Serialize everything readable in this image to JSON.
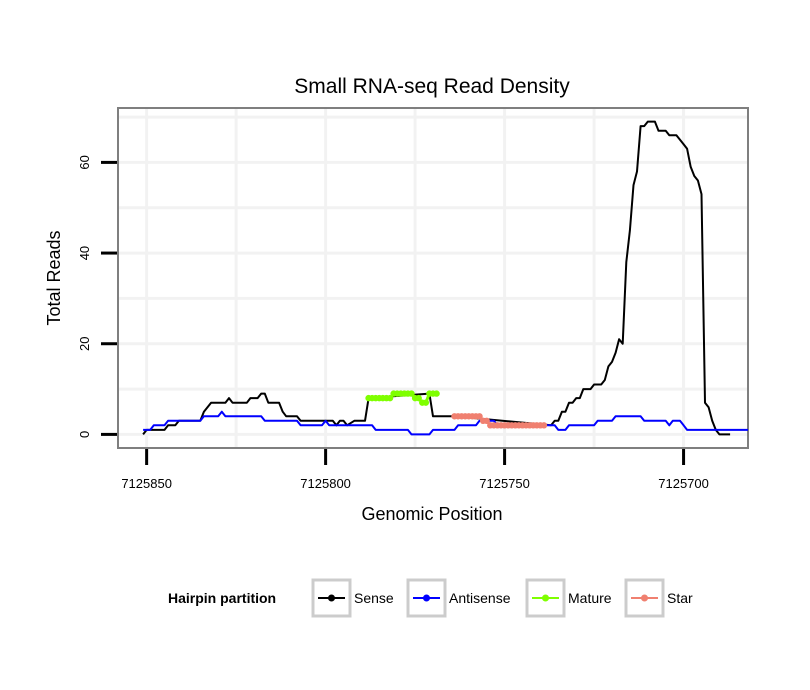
{
  "chart_data": {
    "type": "line",
    "title": "Small RNA-seq Read Density",
    "xlabel": "Genomic Position",
    "ylabel": "Total Reads",
    "xlim": [
      7125858,
      7125682
    ],
    "ylim": [
      -3,
      72
    ],
    "x_ticks": [
      7125850,
      7125800,
      7125750,
      7125700
    ],
    "x_tick_labels": [
      "7125850",
      "7125800",
      "7125750",
      "7125700"
    ],
    "y_ticks": [
      0,
      20,
      40,
      60
    ],
    "y_tick_labels": [
      "0",
      "20",
      "40",
      "60"
    ],
    "grid": true,
    "legend": {
      "title": "Hairpin partition",
      "position": "bottom",
      "entries": [
        {
          "name": "Sense",
          "color": "#000000"
        },
        {
          "name": "Antisense",
          "color": "#0000ff"
        },
        {
          "name": "Mature",
          "color": "#7fff00"
        },
        {
          "name": "Star",
          "color": "#f08070"
        }
      ]
    },
    "series": [
      {
        "name": "Sense",
        "color": "#000000",
        "style": "line",
        "points": [
          [
            7125851,
            0
          ],
          [
            7125850,
            1
          ],
          [
            7125845,
            1
          ],
          [
            7125844,
            2
          ],
          [
            7125842,
            2
          ],
          [
            7125841,
            3
          ],
          [
            7125835,
            3
          ],
          [
            7125834,
            5
          ],
          [
            7125832,
            7
          ],
          [
            7125828,
            7
          ],
          [
            7125827,
            8
          ],
          [
            7125826,
            7
          ],
          [
            7125822,
            7
          ],
          [
            7125821,
            8
          ],
          [
            7125819,
            8
          ],
          [
            7125818,
            9
          ],
          [
            7125817,
            9
          ],
          [
            7125816,
            7
          ],
          [
            7125813,
            7
          ],
          [
            7125812,
            5
          ],
          [
            7125811,
            4
          ],
          [
            7125808,
            4
          ],
          [
            7125807,
            3
          ],
          [
            7125798,
            3
          ],
          [
            7125797,
            2
          ],
          [
            7125796,
            3
          ],
          [
            7125795,
            3
          ],
          [
            7125794,
            2
          ],
          [
            7125792,
            3
          ],
          [
            7125789,
            3
          ],
          [
            7125788,
            8
          ],
          [
            7125771,
            9
          ],
          [
            7125770,
            4
          ],
          [
            7125764,
            4
          ],
          [
            7125737,
            2
          ],
          [
            7125736,
            3
          ],
          [
            7125735,
            3
          ],
          [
            7125734,
            5
          ],
          [
            7125733,
            5
          ],
          [
            7125732,
            7
          ],
          [
            7125731,
            7
          ],
          [
            7125730,
            8
          ],
          [
            7125729,
            8
          ],
          [
            7125728,
            10
          ],
          [
            7125726,
            10
          ],
          [
            7125725,
            11
          ],
          [
            7125723,
            11
          ],
          [
            7125722,
            12
          ],
          [
            7125721,
            15
          ],
          [
            7125720,
            16
          ],
          [
            7125719,
            18
          ],
          [
            7125718,
            21
          ],
          [
            7125717,
            20
          ],
          [
            7125716,
            38
          ],
          [
            7125715,
            45
          ],
          [
            7125714,
            55
          ],
          [
            7125713,
            58
          ],
          [
            7125712,
            68
          ],
          [
            7125711,
            68
          ],
          [
            7125710,
            69
          ],
          [
            7125708,
            69
          ],
          [
            7125707,
            67
          ],
          [
            7125705,
            67
          ],
          [
            7125704,
            66
          ],
          [
            7125702,
            66
          ],
          [
            7125701,
            65
          ],
          [
            7125700,
            64
          ],
          [
            7125699,
            63
          ],
          [
            7125698,
            59
          ],
          [
            7125697,
            57
          ],
          [
            7125696,
            56
          ],
          [
            7125695,
            53
          ],
          [
            7125694,
            7
          ],
          [
            7125693,
            6
          ],
          [
            7125692,
            3
          ],
          [
            7125691,
            1
          ],
          [
            7125690,
            0
          ],
          [
            7125687,
            0
          ]
        ]
      },
      {
        "name": "Antisense",
        "color": "#0000ff",
        "style": "line",
        "points": [
          [
            7125851,
            1
          ],
          [
            7125849,
            1
          ],
          [
            7125848,
            2
          ],
          [
            7125845,
            2
          ],
          [
            7125844,
            3
          ],
          [
            7125835,
            3
          ],
          [
            7125834,
            4
          ],
          [
            7125830,
            4
          ],
          [
            7125829,
            5
          ],
          [
            7125828,
            4
          ],
          [
            7125818,
            4
          ],
          [
            7125817,
            3
          ],
          [
            7125808,
            3
          ],
          [
            7125807,
            2
          ],
          [
            7125801,
            2
          ],
          [
            7125800,
            3
          ],
          [
            7125799,
            2
          ],
          [
            7125787,
            2
          ],
          [
            7125786,
            1
          ],
          [
            7125777,
            1
          ],
          [
            7125776,
            0
          ],
          [
            7125771,
            0
          ],
          [
            7125770,
            1
          ],
          [
            7125764,
            1
          ],
          [
            7125763,
            2
          ],
          [
            7125758,
            2
          ],
          [
            7125757,
            3
          ],
          [
            7125753,
            3
          ],
          [
            7125752,
            2
          ],
          [
            7125736,
            2
          ],
          [
            7125735,
            1
          ],
          [
            7125733,
            1
          ],
          [
            7125732,
            2
          ],
          [
            7125725,
            2
          ],
          [
            7125724,
            3
          ],
          [
            7125720,
            3
          ],
          [
            7125719,
            4
          ],
          [
            7125712,
            4
          ],
          [
            7125711,
            3
          ],
          [
            7125705,
            3
          ],
          [
            7125704,
            2
          ],
          [
            7125703,
            3
          ],
          [
            7125701,
            3
          ],
          [
            7125700,
            2
          ],
          [
            7125699,
            1
          ],
          [
            7125682,
            1
          ]
        ]
      },
      {
        "name": "Mature",
        "color": "#7fff00",
        "style": "points",
        "points": [
          [
            7125788,
            8
          ],
          [
            7125787,
            8
          ],
          [
            7125786,
            8
          ],
          [
            7125785,
            8
          ],
          [
            7125784,
            8
          ],
          [
            7125783,
            8
          ],
          [
            7125782,
            8
          ],
          [
            7125781,
            9
          ],
          [
            7125780,
            9
          ],
          [
            7125779,
            9
          ],
          [
            7125778,
            9
          ],
          [
            7125777,
            9
          ],
          [
            7125776,
            9
          ],
          [
            7125775,
            8
          ],
          [
            7125774,
            8
          ],
          [
            7125773,
            7
          ],
          [
            7125772,
            7
          ],
          [
            7125771,
            9
          ],
          [
            7125770,
            9
          ],
          [
            7125769,
            9
          ]
        ]
      },
      {
        "name": "Star",
        "color": "#f08070",
        "style": "points",
        "points": [
          [
            7125764,
            4
          ],
          [
            7125763,
            4
          ],
          [
            7125762,
            4
          ],
          [
            7125761,
            4
          ],
          [
            7125760,
            4
          ],
          [
            7125759,
            4
          ],
          [
            7125758,
            4
          ],
          [
            7125757,
            4
          ],
          [
            7125756,
            3
          ],
          [
            7125755,
            3
          ],
          [
            7125754,
            2
          ],
          [
            7125753,
            2
          ],
          [
            7125752,
            2
          ],
          [
            7125751,
            2
          ],
          [
            7125750,
            2
          ],
          [
            7125749,
            2
          ],
          [
            7125748,
            2
          ],
          [
            7125747,
            2
          ],
          [
            7125746,
            2
          ],
          [
            7125745,
            2
          ],
          [
            7125744,
            2
          ],
          [
            7125743,
            2
          ],
          [
            7125742,
            2
          ],
          [
            7125741,
            2
          ],
          [
            7125740,
            2
          ],
          [
            7125739,
            2
          ]
        ]
      }
    ]
  }
}
